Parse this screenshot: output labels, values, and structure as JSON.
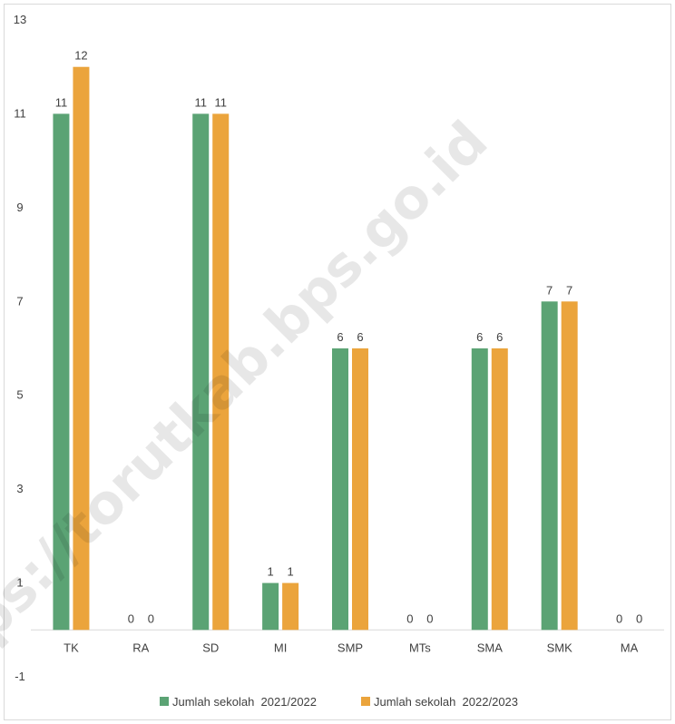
{
  "chart_data": {
    "type": "bar",
    "categories": [
      "TK",
      "RA",
      "SD",
      "MI",
      "SMP",
      "MTs",
      "SMA",
      "SMK",
      "MA"
    ],
    "series": [
      {
        "name": "Jumlah sekolah  2021/2022",
        "color": "#5ba374",
        "values": [
          11,
          0,
          11,
          1,
          6,
          0,
          6,
          7,
          0
        ]
      },
      {
        "name": "Jumlah sekolah  2022/2023",
        "color": "#eba43c",
        "values": [
          12,
          0,
          11,
          1,
          6,
          0,
          6,
          7,
          0
        ]
      }
    ],
    "yticks": [
      -1,
      1,
      3,
      5,
      7,
      9,
      11,
      13
    ],
    "ylim": [
      -1,
      13
    ],
    "grid": false,
    "legend_position": "bottom"
  },
  "watermark": "https://torutkab.bps.go.id"
}
